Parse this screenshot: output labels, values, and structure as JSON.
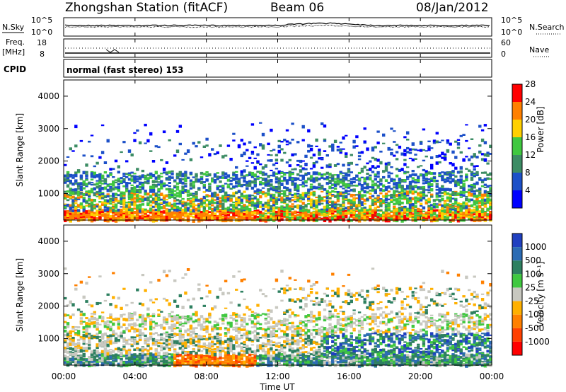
{
  "header": {
    "station": "Zhongshan Station (fitACF)",
    "beam": "Beam 06",
    "date": "08/Jan/2012"
  },
  "noise_panel": {
    "left_label": "N.Sky",
    "left_ticks": [
      "10^5",
      "10^0"
    ],
    "right_label": "N.Search",
    "right_ticks": [
      "10^5",
      "10^0"
    ]
  },
  "freq_panel": {
    "left_label_1": "Freq.",
    "left_label_2": "[MHz]",
    "left_ticks": [
      "18",
      "8"
    ],
    "right_label": "Nave",
    "right_ticks": [
      "60",
      "0"
    ]
  },
  "cpid": {
    "label": "CPID",
    "text": "normal (fast stereo) 153"
  },
  "chart_data": [
    {
      "type": "heatmap",
      "name": "power",
      "ylabel": "Slant Range [km]",
      "yticks": [
        1000,
        2000,
        3000,
        4000
      ],
      "ylim": [
        180,
        4500
      ],
      "xlim": [
        0,
        24
      ],
      "colorbar_label": "Power [dB]",
      "colorbar_ticks": [
        "4",
        "8",
        "12",
        "16",
        "20",
        "24",
        "28"
      ],
      "colors": [
        "#0000ff",
        "#1c50c8",
        "#3c8c64",
        "#40c840",
        "#ffd000",
        "#ff8000",
        "#ff0000"
      ]
    },
    {
      "type": "heatmap",
      "name": "velocity",
      "ylabel": "Slant Range [km]",
      "yticks": [
        1000,
        2000,
        3000,
        4000
      ],
      "ylim": [
        180,
        4500
      ],
      "xlim": [
        0,
        24
      ],
      "colorbar_label": "Velocity [m s⁻¹]",
      "colorbar_ticks": [
        "1000",
        "500",
        "100",
        "25",
        "-25",
        "-100",
        "-500",
        "-1000"
      ],
      "colors": [
        "#2040c0",
        "#2c6cb4",
        "#2e8060",
        "#40c840",
        "#c8c8c0",
        "#ffb000",
        "#ff8000",
        "#ff4000",
        "#ff0000"
      ]
    }
  ],
  "time_axis": {
    "ticks": [
      "00:00",
      "04:00",
      "08:00",
      "12:00",
      "16:00",
      "20:00",
      "00:00"
    ],
    "xlabel": "Time UT"
  }
}
